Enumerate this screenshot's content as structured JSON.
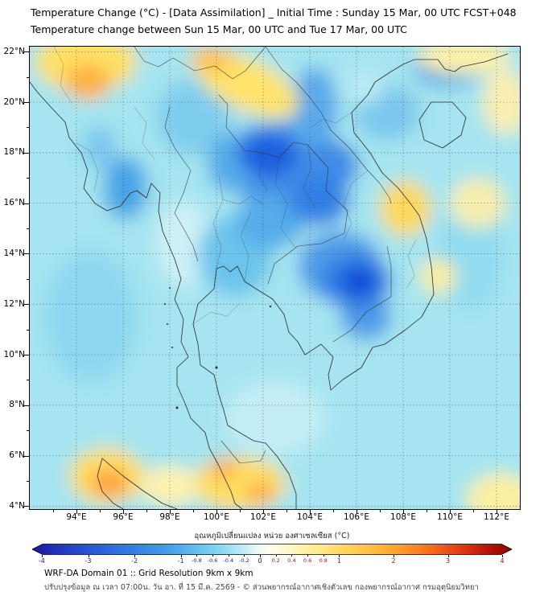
{
  "header": {
    "title_line1": "Temperature Change (°C) - [Data Assimilation] _ Initial Time : Sunday 15 Mar, 00 UTC FCST+048",
    "title_line2": "Temperature change between Sun 15 Mar, 00 UTC and Tue 17 Mar, 00 UTC"
  },
  "map": {
    "lat_ticks": [
      "22°N",
      "20°N",
      "18°N",
      "16°N",
      "14°N",
      "12°N",
      "10°N",
      "8°N",
      "6°N",
      "4°N"
    ],
    "lon_ticks": [
      "94°E",
      "96°E",
      "98°E",
      "100°E",
      "102°E",
      "104°E",
      "106°E",
      "108°E",
      "110°E",
      "112°E"
    ]
  },
  "colorbar": {
    "label": "อุณหภูมิเปลี่ยนแปลง หน่วย องศาเซลเซียส (°C)",
    "ticks": [
      -4,
      -3,
      -2,
      -1,
      -0.8,
      -0.6,
      -0.4,
      -0.2,
      0,
      0.2,
      0.4,
      0.6,
      0.8,
      1,
      2,
      3,
      4
    ],
    "gradient": [
      {
        "p": 0,
        "c": "#1f169e"
      },
      {
        "p": 0.05,
        "c": "#2233bb"
      },
      {
        "p": 0.12,
        "c": "#2b55d4"
      },
      {
        "p": 0.2,
        "c": "#3478e2"
      },
      {
        "p": 0.28,
        "c": "#459ae8"
      },
      {
        "p": 0.345,
        "c": "#66c0ee"
      },
      {
        "p": 0.4,
        "c": "#92daf3"
      },
      {
        "p": 0.445,
        "c": "#c6eef8"
      },
      {
        "p": 0.475,
        "c": "#f2fbf6"
      },
      {
        "p": 0.5,
        "c": "#fffdea"
      },
      {
        "p": 0.545,
        "c": "#fff6c0"
      },
      {
        "p": 0.6,
        "c": "#ffe98c"
      },
      {
        "p": 0.655,
        "c": "#ffd557"
      },
      {
        "p": 0.72,
        "c": "#ffb93a"
      },
      {
        "p": 0.78,
        "c": "#ff9427"
      },
      {
        "p": 0.84,
        "c": "#f4661c"
      },
      {
        "p": 0.9,
        "c": "#dd3514"
      },
      {
        "p": 0.95,
        "c": "#b8130c"
      },
      {
        "p": 1,
        "c": "#8f0000"
      }
    ],
    "negative_label_color": "#1a1aa6",
    "positive_label_color": "#a01010",
    "zero_label_color": "#222222"
  },
  "footer": {
    "line1": "WRF-DA Domain 01 :: Grid Resolution 9km x 9km",
    "line2": "ปรับปรุงข้อมูล ณ เวลา 07:00น. วัน อา. ที่ 15 มี.ค. 2569 - © ส่วนพยากรณ์อากาศเชิงตัวเลข กองพยากรณ์อากาศ กรมอุตุนิยมวิทยา"
  },
  "chart_data": {
    "type": "heatmap",
    "title": "Temperature change (°C), Sun 15 Mar 00 UTC to Tue 17 Mar 00 UTC",
    "units": "°C",
    "lon_range": [
      92,
      113
    ],
    "lat_range": [
      3.9,
      22.2
    ],
    "colorbar_range": [
      -4,
      4
    ],
    "base_color": "#a5e4f0",
    "base_value": -0.5,
    "features": [
      {
        "name": "andaman-cyan",
        "lon": 94.6,
        "lat": 11.5,
        "rxd": 2.0,
        "ryd": 2.6,
        "color": "#8dd8f0",
        "value": -0.8
      },
      {
        "name": "east-sea-cyan",
        "lon": 110.9,
        "lat": 14.0,
        "rxd": 1.4,
        "ryd": 2.2,
        "color": "#93dcf1",
        "value": -0.7
      },
      {
        "name": "gulf-pale",
        "lon": 102.5,
        "lat": 7.5,
        "rxd": 2.2,
        "ryd": 1.5,
        "color": "#c2edf6",
        "value": -0.3
      },
      {
        "name": "west-central-pale",
        "lon": 98.6,
        "lat": 14.4,
        "rxd": 1.2,
        "ryd": 1.7,
        "color": "#cdf0f7",
        "value": -0.2
      },
      {
        "name": "north-thailand-cyan",
        "lon": 99.0,
        "lat": 19.4,
        "rxd": 1.6,
        "ryd": 1.5,
        "color": "#7fcdee",
        "value": -1.0
      },
      {
        "name": "tonkin-cyan",
        "lon": 107.3,
        "lat": 19.6,
        "rxd": 1.4,
        "ryd": 1.1,
        "color": "#7cc8ee",
        "value": -1.0
      },
      {
        "name": "central-thailand-blue",
        "lon": 100.8,
        "lat": 13.9,
        "rxd": 1.6,
        "ryd": 1.6,
        "color": "#6cc4ec",
        "value": -1.2
      },
      {
        "name": "myanmar-coast-blue",
        "lon": 96.1,
        "lat": 16.6,
        "rxd": 0.95,
        "ryd": 1.25,
        "color": "#4aa4e8",
        "value": -1.8
      },
      {
        "name": "myanmar-north-cyan",
        "lon": 95.0,
        "lat": 18.2,
        "rxd": 0.75,
        "ryd": 0.85,
        "color": "#7cc8ee",
        "value": -1.0
      },
      {
        "name": "ne-thailand-laos-blue",
        "lon": 102.6,
        "lat": 17.6,
        "rxd": 2.6,
        "ryd": 1.6,
        "color": "#3f8ce6",
        "value": -2.0
      },
      {
        "name": "west-blue-extension",
        "lon": 100.7,
        "lat": 17.6,
        "rxd": 1.1,
        "ryd": 1.2,
        "color": "#55ace9",
        "value": -1.6
      },
      {
        "name": "mid-blue-extension",
        "lon": 102.3,
        "lat": 15.3,
        "rxd": 1.5,
        "ryd": 1.1,
        "color": "#55ace9",
        "value": -1.6
      },
      {
        "name": "north-streak-blue",
        "lon": 104.2,
        "lat": 19.7,
        "rxd": 1.0,
        "ryd": 1.7,
        "color": "#5aa9ea",
        "value": -1.5
      },
      {
        "name": "ne-laos-node",
        "lon": 104.9,
        "lat": 17.5,
        "rxd": 1.2,
        "ryd": 1.0,
        "color": "#3f8ce6",
        "value": -2.0
      },
      {
        "name": "se-node-blue",
        "lon": 104.4,
        "lat": 16.1,
        "rxd": 1.3,
        "ryd": 1.0,
        "color": "#3380e5",
        "value": -2.2
      },
      {
        "name": "ne-thailand-core",
        "lon": 102.2,
        "lat": 17.9,
        "rxd": 1.3,
        "ryd": 0.85,
        "color": "#1e5fe0",
        "value": -2.8
      },
      {
        "name": "cambodia-surround-blue",
        "lon": 105.3,
        "lat": 13.5,
        "rxd": 1.8,
        "ryd": 1.4,
        "color": "#4f9ce8",
        "value": -1.8
      },
      {
        "name": "s-vietnam-extension",
        "lon": 106.4,
        "lat": 11.5,
        "rxd": 1.1,
        "ryd": 0.9,
        "color": "#4f9ce8",
        "value": -1.8
      },
      {
        "name": "cambodia-vietnam-blue",
        "lon": 106.0,
        "lat": 12.9,
        "rxd": 1.5,
        "ryd": 1.1,
        "color": "#2f7ce4",
        "value": -2.5
      },
      {
        "name": "cambodia-vietnam-core",
        "lon": 106.1,
        "lat": 12.9,
        "rxd": 0.75,
        "ryd": 0.55,
        "color": "#0a46d8",
        "value": -3.2
      },
      {
        "name": "top-right-blue",
        "lon": 109.9,
        "lat": 21.4,
        "rxd": 1.5,
        "ryd": 0.8,
        "color": "#57a8e8",
        "value": -1.6
      },
      {
        "name": "delta-pale",
        "lon": 106.3,
        "lat": 20.6,
        "rxd": 0.9,
        "ryd": 0.7,
        "color": "#b8eaf4",
        "value": -0.4
      },
      {
        "name": "top-left-yellow",
        "lon": 94.4,
        "lat": 21.6,
        "rxd": 2.2,
        "ryd": 1.2,
        "color": "#ffe066",
        "value": 0.8
      },
      {
        "name": "top-left-orange",
        "lon": 94.5,
        "lat": 20.8,
        "rxd": 1.0,
        "ryd": 0.7,
        "color": "#ffb13d",
        "value": 1.5
      },
      {
        "name": "top-yellow-band",
        "lon": 101.3,
        "lat": 20.7,
        "rxd": 2.4,
        "ryd": 1.0,
        "color": "#ffe36b",
        "value": 0.8,
        "rot": 25
      },
      {
        "name": "top-band-orange",
        "lon": 99.8,
        "lat": 21.7,
        "rxd": 0.95,
        "ryd": 0.5,
        "color": "#ffc14a",
        "value": 1.2
      },
      {
        "name": "top-right-pale-yellow",
        "lon": 110.6,
        "lat": 21.8,
        "rxd": 2.0,
        "ryd": 0.7,
        "color": "#fdf0a8",
        "value": 0.3
      },
      {
        "name": "right-edge-pale-yellow",
        "lon": 112.4,
        "lat": 20.0,
        "rxd": 1.0,
        "ryd": 1.3,
        "color": "#fbeeb0",
        "value": 0.3
      },
      {
        "name": "central-vietnam-yellow",
        "lon": 108.1,
        "lat": 15.8,
        "rxd": 1.1,
        "ryd": 1.1,
        "color": "#ffd95c",
        "value": 0.9
      },
      {
        "name": "coastal-pale-yellow",
        "lon": 109.5,
        "lat": 13.1,
        "rxd": 0.8,
        "ryd": 0.7,
        "color": "#f9eda0",
        "value": 0.4
      },
      {
        "name": "east-pale-yellow",
        "lon": 111.2,
        "lat": 16.0,
        "rxd": 1.2,
        "ryd": 1.0,
        "color": "#f6eeae",
        "value": 0.3
      },
      {
        "name": "sumatra-yellow",
        "lon": 95.3,
        "lat": 5.2,
        "rxd": 1.6,
        "ryd": 1.1,
        "color": "#ffdd61",
        "value": 0.9
      },
      {
        "name": "sumatra-orange",
        "lon": 95.4,
        "lat": 4.9,
        "rxd": 0.8,
        "ryd": 0.55,
        "color": "#ff9f40",
        "value": 1.8
      },
      {
        "name": "malaysia-yellow",
        "lon": 101.0,
        "lat": 4.9,
        "rxd": 2.0,
        "ryd": 1.05,
        "color": "#ffdd61",
        "value": 0.9
      },
      {
        "name": "malaysia-orange-1",
        "lon": 100.3,
        "lat": 5.5,
        "rxd": 0.55,
        "ryd": 0.4,
        "color": "#ffa944",
        "value": 1.6
      },
      {
        "name": "malaysia-orange-2",
        "lon": 101.9,
        "lat": 4.5,
        "rxd": 0.6,
        "ryd": 0.42,
        "color": "#ffa944",
        "value": 1.6
      },
      {
        "name": "south-pale-yellow",
        "lon": 98.0,
        "lat": 4.8,
        "rxd": 1.2,
        "ryd": 0.8,
        "color": "#fff2ae",
        "value": 0.4
      },
      {
        "name": "bottom-right-pale-yellow",
        "lon": 112.2,
        "lat": 4.3,
        "rxd": 1.5,
        "ryd": 1.0,
        "color": "#fbf0a0",
        "value": 0.4
      }
    ]
  }
}
